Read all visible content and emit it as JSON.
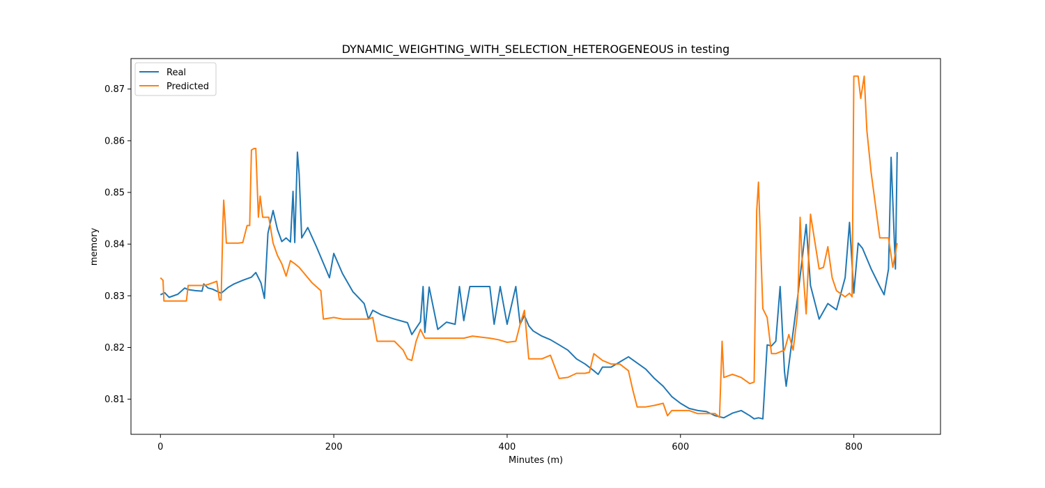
{
  "chart_data": {
    "type": "line",
    "title": "DYNAMIC_WEIGHTING_WITH_SELECTION_HETEROGENEOUS in testing",
    "xlabel": "Minutes (m)",
    "ylabel": "memory",
    "xlim": [
      -34,
      900
    ],
    "ylim": [
      0.8032,
      0.8759
    ],
    "xticks": [
      0,
      200,
      400,
      600,
      800
    ],
    "yticks": [
      0.81,
      0.82,
      0.83,
      0.84,
      0.85,
      0.86,
      0.87
    ],
    "xtick_labels": [
      "0",
      "200",
      "400",
      "600",
      "800"
    ],
    "ytick_labels": [
      "0.81",
      "0.82",
      "0.83",
      "0.84",
      "0.85",
      "0.86",
      "0.87"
    ],
    "grid": false,
    "legend": {
      "position": "top-left",
      "entries": [
        "Real",
        "Predicted"
      ]
    },
    "series": [
      {
        "name": "Real",
        "color": "#1f77b4",
        "x": [
          0,
          5,
          10,
          20,
          28,
          32,
          40,
          48,
          50,
          55,
          60,
          70,
          78,
          85,
          95,
          105,
          110,
          116,
          120,
          124,
          130,
          135,
          140,
          145,
          150,
          153,
          155,
          158,
          160,
          163,
          170,
          180,
          190,
          195,
          200,
          210,
          222,
          235,
          240,
          245,
          255,
          270,
          285,
          290,
          300,
          303,
          305,
          310,
          320,
          330,
          340,
          345,
          350,
          357,
          360,
          370,
          380,
          385,
          392,
          400,
          410,
          415,
          420,
          425,
          430,
          440,
          450,
          460,
          470,
          480,
          490,
          500,
          505,
          510,
          520,
          540,
          560,
          570,
          580,
          590,
          600,
          610,
          620,
          630,
          640,
          650,
          660,
          670,
          680,
          685,
          690,
          695,
          700,
          705,
          710,
          715,
          720,
          722,
          728,
          735,
          740,
          745,
          750,
          760,
          770,
          780,
          790,
          795,
          800,
          805,
          810,
          820,
          830,
          835,
          840,
          843,
          848,
          850
        ],
        "y": [
          0.8302,
          0.8306,
          0.8297,
          0.8303,
          0.8315,
          0.8312,
          0.831,
          0.8309,
          0.8323,
          0.8315,
          0.8313,
          0.8305,
          0.8316,
          0.8323,
          0.833,
          0.8336,
          0.8345,
          0.8325,
          0.8295,
          0.8421,
          0.8465,
          0.8428,
          0.8405,
          0.8412,
          0.8404,
          0.8502,
          0.8403,
          0.8578,
          0.8535,
          0.8412,
          0.8432,
          0.8395,
          0.8355,
          0.8335,
          0.8382,
          0.8343,
          0.8308,
          0.8285,
          0.8255,
          0.8272,
          0.8263,
          0.8255,
          0.8248,
          0.8225,
          0.825,
          0.8318,
          0.8229,
          0.8317,
          0.8235,
          0.8249,
          0.8245,
          0.8318,
          0.8252,
          0.8318,
          0.8318,
          0.8318,
          0.8318,
          0.8245,
          0.8318,
          0.8245,
          0.8318,
          0.8245,
          0.8262,
          0.8242,
          0.8232,
          0.8222,
          0.8215,
          0.8205,
          0.8195,
          0.8178,
          0.8168,
          0.8155,
          0.8148,
          0.8162,
          0.8162,
          0.8182,
          0.8158,
          0.814,
          0.8125,
          0.8105,
          0.8092,
          0.8082,
          0.8078,
          0.8076,
          0.8068,
          0.8064,
          0.8073,
          0.8078,
          0.8068,
          0.8062,
          0.8064,
          0.8062,
          0.8205,
          0.8203,
          0.8212,
          0.8318,
          0.8153,
          0.8125,
          0.8205,
          0.8295,
          0.8365,
          0.8438,
          0.832,
          0.8255,
          0.8285,
          0.8273,
          0.8335,
          0.8442,
          0.8305,
          0.8402,
          0.8392,
          0.8352,
          0.8318,
          0.8302,
          0.8352,
          0.8568,
          0.8352,
          0.8578
        ]
      },
      {
        "name": "Predicted",
        "color": "#ff7f0e",
        "x": [
          0,
          3,
          4,
          12,
          20,
          30,
          32,
          36,
          40,
          50,
          55,
          60,
          65,
          68,
          70,
          72,
          73,
          75,
          76,
          78,
          80,
          90,
          95,
          100,
          103,
          105,
          108,
          110,
          113,
          115,
          118,
          120,
          125,
          130,
          135,
          140,
          145,
          150,
          155,
          160,
          165,
          175,
          185,
          188,
          200,
          210,
          240,
          245,
          250,
          255,
          270,
          280,
          285,
          290,
          295,
          300,
          305,
          310,
          320,
          330,
          340,
          350,
          360,
          370,
          380,
          390,
          400,
          410,
          415,
          420,
          425,
          430,
          440,
          450,
          460,
          470,
          480,
          485,
          490,
          495,
          500,
          510,
          520,
          530,
          540,
          545,
          550,
          560,
          570,
          580,
          585,
          590,
          600,
          610,
          620,
          630,
          640,
          645,
          648,
          650,
          660,
          670,
          680,
          685,
          688,
          690,
          695,
          700,
          705,
          710,
          720,
          725,
          730,
          735,
          738,
          740,
          745,
          750,
          755,
          760,
          765,
          770,
          775,
          780,
          790,
          795,
          798,
          800,
          805,
          808,
          812,
          815,
          820,
          830,
          840,
          845,
          850
        ],
        "y": [
          0.8335,
          0.833,
          0.829,
          0.829,
          0.829,
          0.829,
          0.832,
          0.832,
          0.832,
          0.832,
          0.8322,
          0.8325,
          0.8328,
          0.8292,
          0.8292,
          0.8437,
          0.8485,
          0.8435,
          0.8402,
          0.8402,
          0.8402,
          0.8402,
          0.8403,
          0.8436,
          0.8436,
          0.8582,
          0.8585,
          0.8585,
          0.8452,
          0.8493,
          0.8452,
          0.8452,
          0.8452,
          0.8402,
          0.8378,
          0.8362,
          0.8338,
          0.8368,
          0.8362,
          0.8355,
          0.8345,
          0.8325,
          0.831,
          0.8255,
          0.8258,
          0.8255,
          0.8255,
          0.8258,
          0.8212,
          0.8212,
          0.8212,
          0.8195,
          0.8178,
          0.8175,
          0.8212,
          0.8235,
          0.8218,
          0.8218,
          0.8218,
          0.8218,
          0.8218,
          0.8218,
          0.8222,
          0.822,
          0.8218,
          0.8215,
          0.821,
          0.8212,
          0.8245,
          0.8272,
          0.8178,
          0.8178,
          0.8178,
          0.8185,
          0.814,
          0.8142,
          0.815,
          0.815,
          0.815,
          0.8152,
          0.8188,
          0.8175,
          0.8168,
          0.8168,
          0.8155,
          0.8118,
          0.8085,
          0.8085,
          0.8088,
          0.8092,
          0.8068,
          0.8078,
          0.8078,
          0.8078,
          0.8072,
          0.8072,
          0.8072,
          0.8065,
          0.8212,
          0.8142,
          0.8148,
          0.8142,
          0.813,
          0.8133,
          0.8465,
          0.852,
          0.8275,
          0.8258,
          0.8188,
          0.8188,
          0.8195,
          0.8225,
          0.8195,
          0.8265,
          0.8452,
          0.838,
          0.8265,
          0.8458,
          0.8405,
          0.8352,
          0.8355,
          0.8395,
          0.8335,
          0.831,
          0.8298,
          0.8305,
          0.8298,
          0.8725,
          0.8725,
          0.8682,
          0.8725,
          0.862,
          0.8538,
          0.8412,
          0.8412,
          0.8355,
          0.8402
        ]
      }
    ]
  }
}
